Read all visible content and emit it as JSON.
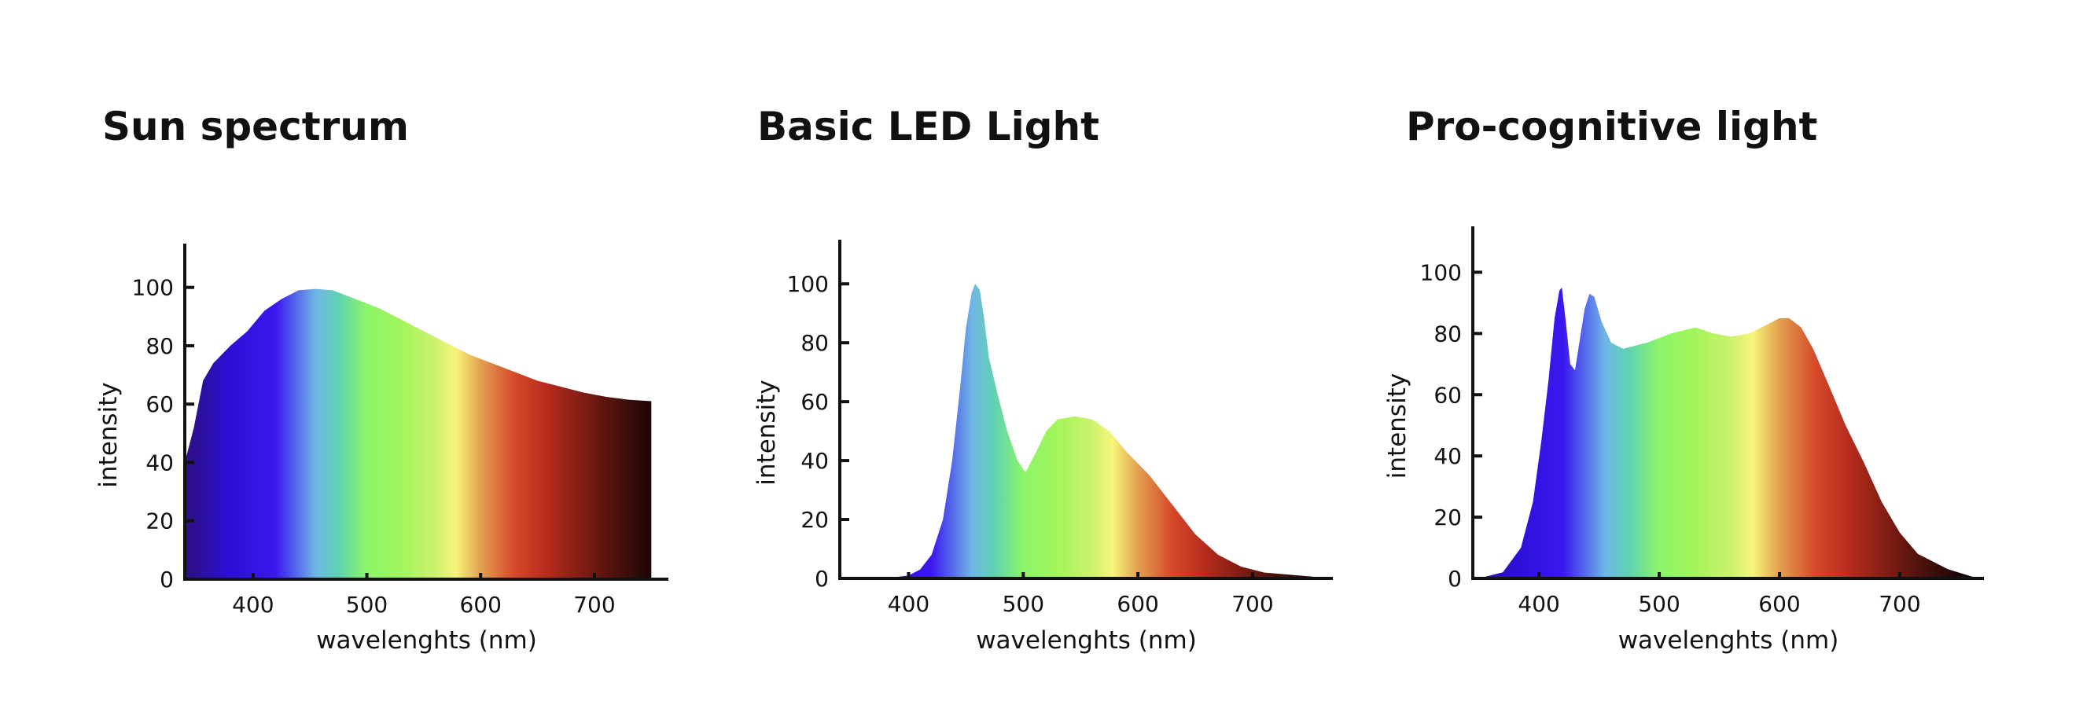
{
  "colors": {
    "spectrum": [
      "#2c0f8a",
      "#2a10d6",
      "#3a18ef",
      "#6fb6e6",
      "#5fd3b0",
      "#8cf56a",
      "#a2f55a",
      "#cdf26e",
      "#f7f57a",
      "#e2a050",
      "#d6482a",
      "#b42a1c",
      "#5a140e",
      "#1a0606"
    ],
    "axis": "#111111",
    "baseline_sun": "#1f1fa8"
  },
  "chart_data": [
    {
      "type": "area",
      "title": "Sun spectrum",
      "xlabel": "wavelenghts (nm)",
      "ylabel": "intensity",
      "xticks": [
        "400",
        "500",
        "600",
        "700"
      ],
      "yticks": [
        "0",
        "20",
        "40",
        "60",
        "80",
        "100"
      ],
      "xlim": [
        340,
        765
      ],
      "ylim": [
        0,
        115
      ],
      "grid": false,
      "x": [
        340,
        348,
        356,
        365,
        380,
        395,
        410,
        425,
        440,
        455,
        470,
        490,
        510,
        530,
        550,
        570,
        590,
        610,
        630,
        650,
        670,
        690,
        710,
        730,
        750
      ],
      "values": [
        40,
        52,
        68,
        74,
        80,
        85,
        92,
        96,
        99,
        99.5,
        99,
        96,
        93,
        89,
        85,
        81,
        77,
        74,
        71,
        68,
        66,
        64,
        62.5,
        61.5,
        61
      ]
    },
    {
      "type": "area",
      "title": "Basic LED Light",
      "xlabel": "wavelenghts (nm)",
      "ylabel": "intensity",
      "xticks": [
        "400",
        "500",
        "600",
        "700"
      ],
      "yticks": [
        "0",
        "20",
        "40",
        "60",
        "80",
        "100"
      ],
      "xlim": [
        340,
        770
      ],
      "ylim": [
        0,
        115
      ],
      "grid": false,
      "x": [
        340,
        380,
        400,
        410,
        420,
        430,
        438,
        445,
        450,
        455,
        458,
        462,
        466,
        470,
        478,
        486,
        495,
        502,
        510,
        520,
        530,
        545,
        560,
        575,
        590,
        610,
        630,
        650,
        670,
        690,
        710,
        740,
        770
      ],
      "values": [
        0,
        0,
        1,
        3,
        8,
        20,
        40,
        65,
        85,
        97,
        100,
        98,
        88,
        75,
        62,
        50,
        40,
        36,
        42,
        50,
        54,
        55,
        54,
        50,
        43,
        35,
        25,
        15,
        8,
        4,
        2,
        1,
        0
      ]
    },
    {
      "type": "area",
      "title": "Pro-cognitive light",
      "xlabel": "wavelenghts (nm)",
      "ylabel": "intensity",
      "xticks": [
        "400",
        "500",
        "600",
        "700"
      ],
      "yticks": [
        "0",
        "20",
        "40",
        "60",
        "80",
        "100"
      ],
      "xlim": [
        345,
        770
      ],
      "ylim": [
        0,
        115
      ],
      "grid": false,
      "x": [
        350,
        370,
        385,
        395,
        402,
        408,
        413,
        417,
        419,
        422,
        426,
        430,
        434,
        438,
        442,
        446,
        452,
        460,
        470,
        490,
        510,
        530,
        545,
        560,
        575,
        590,
        600,
        608,
        618,
        628,
        640,
        655,
        670,
        685,
        700,
        715,
        740,
        765
      ],
      "values": [
        0,
        2,
        10,
        25,
        45,
        65,
        85,
        94,
        95,
        85,
        70,
        68,
        78,
        88,
        93,
        92,
        84,
        77,
        75,
        77,
        80,
        82,
        80,
        79,
        80,
        83,
        85,
        85,
        82,
        75,
        64,
        50,
        38,
        25,
        15,
        8,
        3,
        0
      ]
    }
  ]
}
